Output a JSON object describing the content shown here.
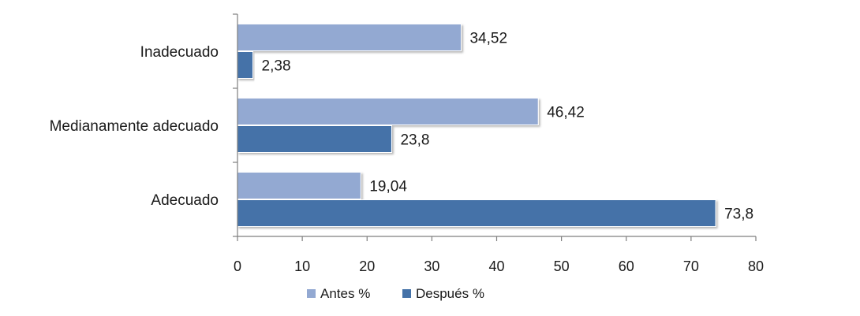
{
  "chart_data": {
    "type": "bar",
    "orientation": "horizontal",
    "categories": [
      "Inadecuado",
      "Medianamente adecuado",
      "Adecuado"
    ],
    "series": [
      {
        "name": "Antes %",
        "values": [
          34.52,
          46.42,
          19.04
        ],
        "labels": [
          "34,52",
          "46,42",
          "19,04"
        ],
        "color": "#93a9d2"
      },
      {
        "name": "Después %",
        "values": [
          2.38,
          23.8,
          73.8
        ],
        "labels": [
          "2,38",
          "23,8",
          "73,8"
        ],
        "color": "#4472a8"
      }
    ],
    "xlim": [
      0,
      80
    ],
    "xticks": [
      0,
      10,
      20,
      30,
      40,
      50,
      60,
      70,
      80
    ],
    "grid": false,
    "legend_position": "bottom"
  }
}
